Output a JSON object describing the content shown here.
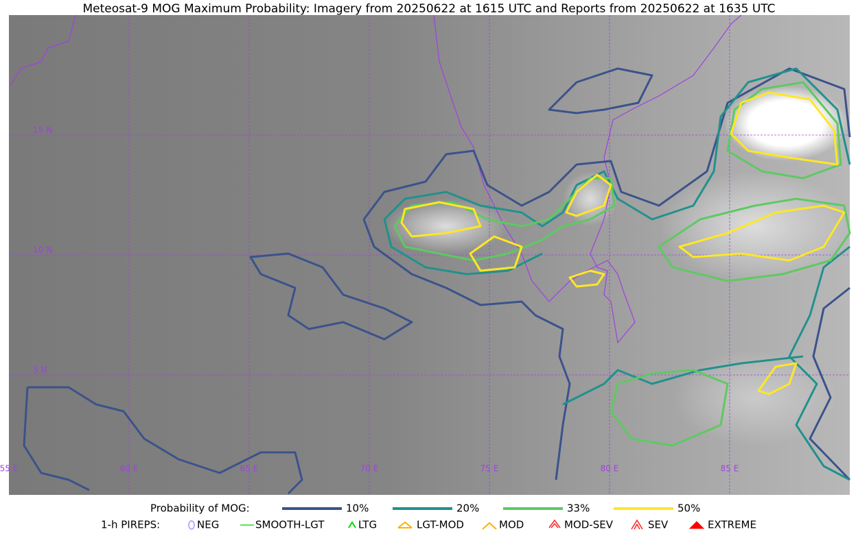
{
  "title": "Meteosat-9 MOG Maximum Probability: Imagery from 20250622 at 1615 UTC and Reports from 20250622 at 1635 UTC",
  "map": {
    "lat_labels": [
      "15 N",
      "10 N",
      "5 N"
    ],
    "lon_labels": [
      "55 E",
      "60 E",
      "65 E",
      "70 E",
      "75 E",
      "80 E",
      "85 E"
    ]
  },
  "legend": {
    "probability": {
      "label": "Probability of MOG:",
      "items": [
        {
          "label": "10%",
          "color": "#3b528b"
        },
        {
          "label": "20%",
          "color": "#21918c"
        },
        {
          "label": "33%",
          "color": "#5ec962"
        },
        {
          "label": "50%",
          "color": "#fde725"
        }
      ]
    },
    "pireps": {
      "label": "1-h PIREPS:",
      "items": [
        {
          "label": "NEG",
          "color": "#b0b0ff"
        },
        {
          "label": "SMOOTH-LGT",
          "color": "#22dd22"
        },
        {
          "label": "LTG",
          "color": "#00dd00"
        },
        {
          "label": "LGT-MOD",
          "color": "#ffb000"
        },
        {
          "label": "MOD",
          "color": "#ffb000"
        },
        {
          "label": "MOD-SEV",
          "color": "#ff2020"
        },
        {
          "label": "SEV",
          "color": "#ff2020"
        },
        {
          "label": "EXTREME",
          "color": "#ff0000"
        }
      ]
    }
  }
}
